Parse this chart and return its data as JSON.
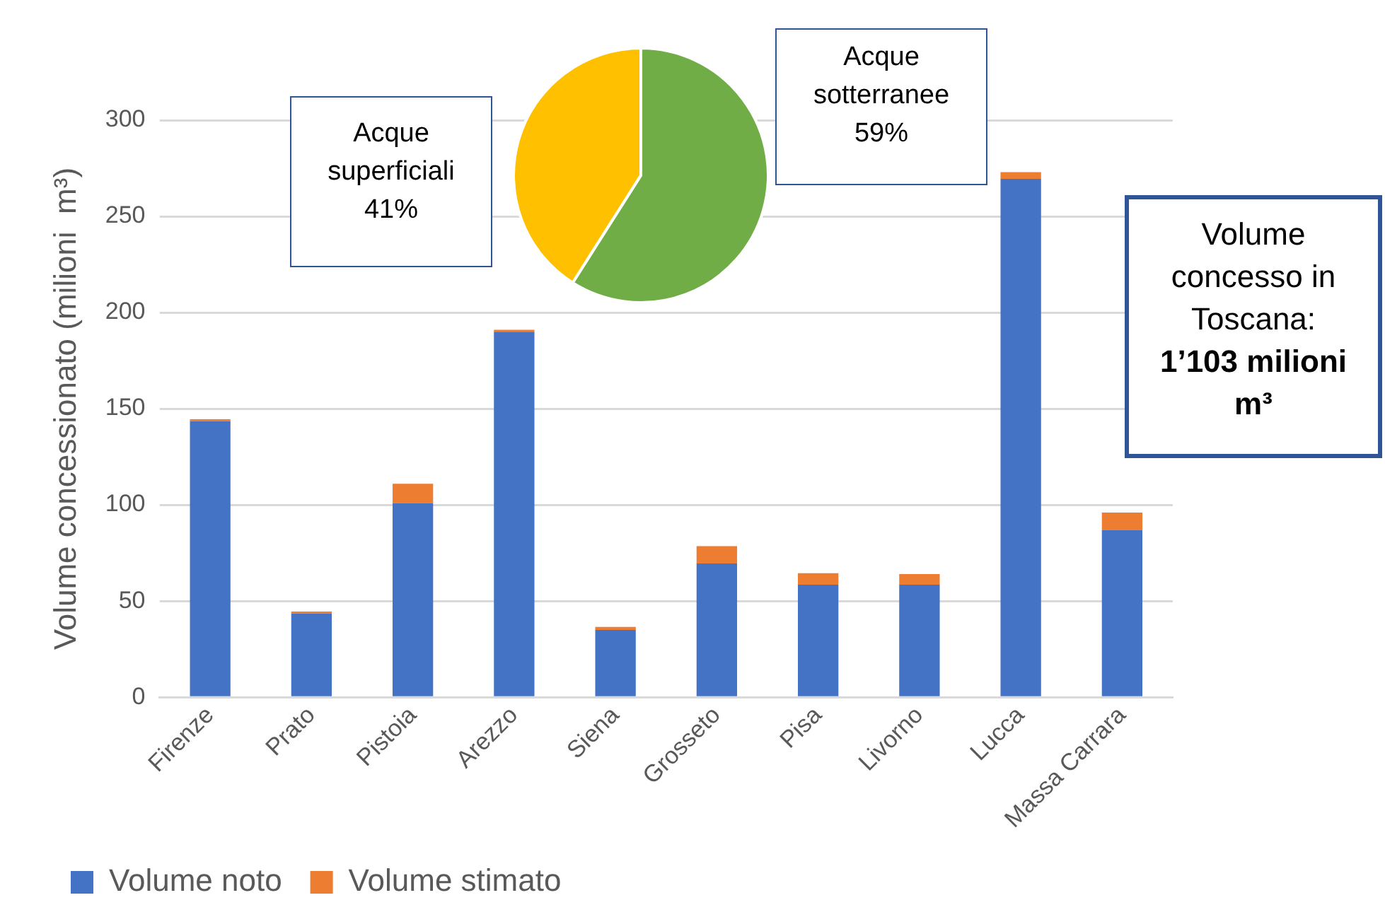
{
  "chart_data": [
    {
      "type": "bar",
      "ylabel": "Volume concessionato (milioni  m³)",
      "categories": [
        "Firenze",
        "Prato",
        "Pistoia",
        "Arezzo",
        "Siena",
        "Grosseto",
        "Pisa",
        "Livorno",
        "Lucca",
        "Massa Carrara"
      ],
      "stacked": true,
      "series": [
        {
          "name": "Volume noto",
          "color": "#4472c4",
          "values": [
            143.5,
            43.5,
            101,
            190,
            35,
            69.5,
            58.5,
            58.5,
            269.5,
            87
          ]
        },
        {
          "name": "Volume stimato",
          "color": "#ed7d31",
          "values": [
            1,
            1,
            10,
            1,
            1.5,
            9,
            6,
            5.5,
            3.5,
            9
          ]
        }
      ],
      "ylim": [
        0,
        300
      ],
      "yticks": [
        0,
        50,
        100,
        150,
        200,
        250,
        300
      ],
      "grid": "y",
      "legend": "bottom",
      "annotations": [
        "Volume concesso in Toscana:",
        "1’103 milioni m³"
      ]
    },
    {
      "type": "pie",
      "categories": [
        "Acque sotterranee",
        "Acque superficiali"
      ],
      "values": [
        59,
        41
      ],
      "colors": [
        "#70ad47",
        "#ffc000"
      ],
      "value_labels": [
        "59%",
        "41%"
      ],
      "legend": false
    }
  ]
}
